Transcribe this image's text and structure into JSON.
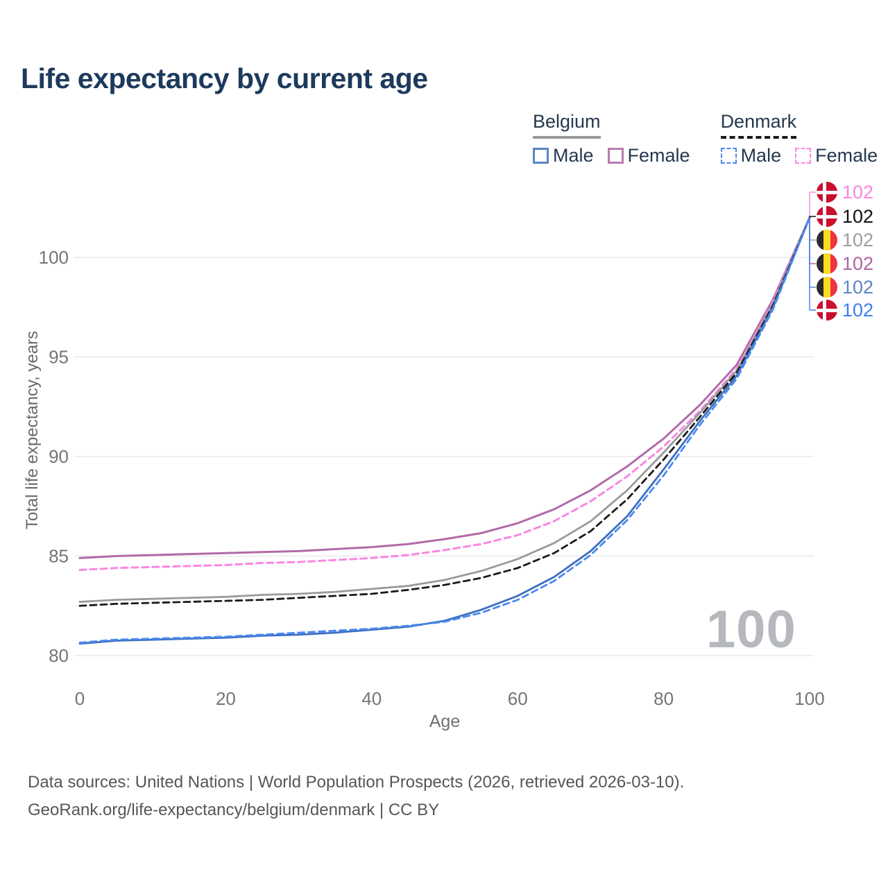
{
  "title": "Life expectancy by current age",
  "legend": {
    "groups": [
      {
        "country": "Belgium",
        "line_style": "solid",
        "underline_color": "#9a9a9a",
        "items": [
          {
            "label": "Male",
            "color": "#5b84c4",
            "box_style": "solid"
          },
          {
            "label": "Female",
            "color": "#b97cb0",
            "box_style": "solid"
          }
        ]
      },
      {
        "country": "Denmark",
        "line_style": "dashed",
        "underline_color": "#1a1a1a",
        "items": [
          {
            "label": "Male",
            "color": "#4a8af0",
            "box_style": "dashed"
          },
          {
            "label": "Female",
            "color": "#f986e2",
            "box_style": "dashed"
          }
        ]
      }
    ]
  },
  "chart_data": {
    "type": "line",
    "title": "Life expectancy by current age",
    "xlabel": "Age",
    "ylabel": "Total life expectancy, years",
    "xlim": [
      0,
      100
    ],
    "ylim": [
      80,
      102
    ],
    "x_ticks": [
      0,
      20,
      40,
      60,
      80,
      100
    ],
    "y_ticks": [
      80,
      85,
      90,
      95,
      100
    ],
    "grid": "horizontal",
    "legend_position": "top-right",
    "x": [
      0,
      5,
      10,
      15,
      20,
      25,
      30,
      35,
      40,
      45,
      50,
      55,
      60,
      65,
      70,
      75,
      80,
      85,
      90,
      95,
      100
    ],
    "series": [
      {
        "name": "Belgium Female",
        "country": "Belgium",
        "sex": "Female",
        "color": "#b26aa8",
        "dash": "solid",
        "width": 3,
        "values": [
          84.9,
          85.0,
          85.05,
          85.1,
          85.15,
          85.2,
          85.25,
          85.35,
          85.45,
          85.6,
          85.85,
          86.15,
          86.65,
          87.35,
          88.3,
          89.5,
          90.9,
          92.6,
          94.6,
          97.9,
          102
        ]
      },
      {
        "name": "Denmark Female",
        "country": "Denmark",
        "sex": "Female",
        "color": "#f986e2",
        "dash": "dashed",
        "width": 3,
        "values": [
          84.3,
          84.4,
          84.45,
          84.5,
          84.55,
          84.65,
          84.7,
          84.8,
          84.9,
          85.05,
          85.3,
          85.6,
          86.05,
          86.75,
          87.75,
          89.0,
          90.5,
          92.3,
          94.4,
          97.8,
          102
        ]
      },
      {
        "name": "Belgium",
        "country": "Belgium",
        "sex": "Both",
        "color": "#9a9a9a",
        "dash": "solid",
        "width": 2.8,
        "values": [
          82.7,
          82.8,
          82.85,
          82.9,
          82.95,
          83.05,
          83.1,
          83.2,
          83.35,
          83.5,
          83.8,
          84.25,
          84.85,
          85.65,
          86.75,
          88.3,
          90.2,
          92.2,
          94.3,
          97.7,
          102
        ]
      },
      {
        "name": "Denmark",
        "country": "Denmark",
        "sex": "Both",
        "color": "#1a1a1a",
        "dash": "dashed",
        "width": 2.8,
        "values": [
          82.5,
          82.6,
          82.65,
          82.7,
          82.75,
          82.8,
          82.9,
          83.0,
          83.1,
          83.3,
          83.55,
          83.9,
          84.4,
          85.15,
          86.25,
          87.85,
          89.85,
          92.0,
          94.2,
          97.6,
          102
        ]
      },
      {
        "name": "Belgium Male",
        "country": "Belgium",
        "sex": "Male",
        "color": "#3d6fc0",
        "dash": "solid",
        "width": 2.8,
        "values": [
          80.6,
          80.75,
          80.8,
          80.85,
          80.9,
          81.0,
          81.05,
          81.15,
          81.3,
          81.45,
          81.75,
          82.3,
          83.0,
          83.95,
          85.25,
          87.0,
          89.35,
          91.8,
          94.05,
          97.5,
          102
        ]
      },
      {
        "name": "Denmark Male",
        "country": "Denmark",
        "sex": "Male",
        "color": "#4a8af0",
        "dash": "dashed",
        "width": 2.8,
        "values": [
          80.65,
          80.8,
          80.85,
          80.9,
          80.95,
          81.05,
          81.15,
          81.25,
          81.35,
          81.5,
          81.7,
          82.15,
          82.8,
          83.75,
          85.05,
          86.8,
          89.05,
          91.6,
          93.9,
          97.4,
          102
        ]
      }
    ],
    "end_labels": [
      {
        "value": "102",
        "color": "#f986e2",
        "flag": "denmark",
        "series": "Denmark Female"
      },
      {
        "value": "102",
        "color": "#111111",
        "flag": "denmark",
        "series": "Denmark"
      },
      {
        "value": "102",
        "color": "#9e9e9e",
        "flag": "belgium",
        "series": "Belgium"
      },
      {
        "value": "102",
        "color": "#ad64a3",
        "flag": "belgium",
        "series": "Belgium Female"
      },
      {
        "value": "102",
        "color": "#5b84c4",
        "flag": "belgium",
        "series": "Belgium Male"
      },
      {
        "value": "102",
        "color": "#3b7ef0",
        "flag": "denmark",
        "series": "Denmark Male"
      }
    ],
    "hover_age_indicator": "100"
  },
  "watermark": "100",
  "footer": {
    "line1": "Data sources: United Nations | World Population Prospects (2026, retrieved 2026-03-10).",
    "line2": "GeoRank.org/life-expectancy/belgium/denmark | CC BY"
  }
}
